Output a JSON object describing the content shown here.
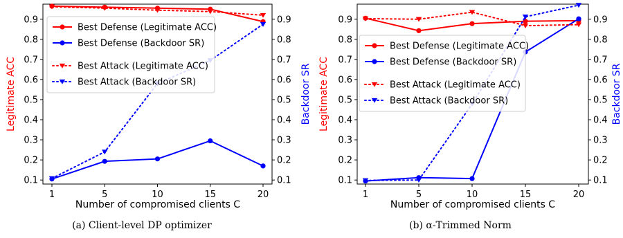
{
  "colors": {
    "acc": "#ff0000",
    "sr": "#0000ff"
  },
  "chart_data": [
    {
      "type": "line",
      "caption": "(a) Client-level DP optimizer",
      "xlabel": "Number of compromised clients C",
      "ylabel_left": "Legitimate ACC",
      "ylabel_right": "Backdoor SR",
      "categories": [
        1,
        5,
        10,
        15,
        20
      ],
      "xticks": [
        "1",
        "5",
        "10",
        "15",
        "20"
      ],
      "yticks": [
        "0.1",
        "0.2",
        "0.3",
        "0.4",
        "0.5",
        "0.6",
        "0.7",
        "0.8",
        "0.9"
      ],
      "ylim": [
        0.08,
        0.975
      ],
      "series": [
        {
          "name": "Best Defense (Legitimate ACC)",
          "values": [
            0.965,
            0.96,
            0.955,
            0.95,
            0.888
          ]
        },
        {
          "name": "Best Defense (Backdoor SR)",
          "values": [
            0.105,
            0.193,
            0.205,
            0.295,
            0.17
          ]
        },
        {
          "name": "Best Attack (Legitimate ACC)",
          "values": [
            0.962,
            0.955,
            0.945,
            0.938,
            0.92
          ]
        },
        {
          "name": "Best Attack (Backdoor SR)",
          "values": [
            0.108,
            0.24,
            0.58,
            0.695,
            0.875
          ]
        }
      ]
    },
    {
      "type": "line",
      "caption": "(b) α-Trimmed Norm",
      "xlabel": "Number of compromised clients C",
      "ylabel_left": "Legitimate ACC",
      "ylabel_right": "Backdoor SR",
      "categories": [
        1,
        5,
        10,
        15,
        20
      ],
      "xticks": [
        "1",
        "5",
        "10",
        "15",
        "20"
      ],
      "yticks": [
        "0.1",
        "0.2",
        "0.3",
        "0.4",
        "0.5",
        "0.6",
        "0.7",
        "0.8",
        "0.9"
      ],
      "ylim": [
        0.08,
        0.975
      ],
      "series": [
        {
          "name": "Best Defense (Legitimate ACC)",
          "values": [
            0.905,
            0.843,
            0.878,
            0.89,
            0.893
          ]
        },
        {
          "name": "Best Defense (Backdoor SR)",
          "values": [
            0.095,
            0.112,
            0.107,
            0.737,
            0.902
          ]
        },
        {
          "name": "Best Attack (Legitimate ACC)",
          "values": [
            0.903,
            0.9,
            0.935,
            0.868,
            0.873
          ]
        },
        {
          "name": "Best Attack (Backdoor SR)",
          "values": [
            0.098,
            0.1,
            0.478,
            0.912,
            0.97
          ]
        }
      ]
    }
  ]
}
